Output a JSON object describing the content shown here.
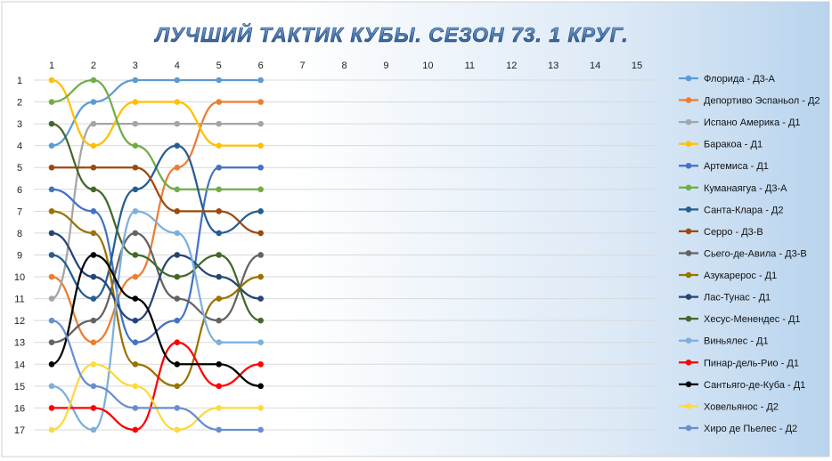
{
  "chart_data": {
    "type": "line",
    "title": "ЛУЧШИЙ ТАКТИК КУБЫ. СЕЗОН 73. 1 КРУГ.",
    "x_ticks": [
      "1",
      "2",
      "3",
      "4",
      "5",
      "6",
      "7",
      "8",
      "9",
      "10",
      "11",
      "12",
      "13",
      "14",
      "15"
    ],
    "y_ticks": [
      "1",
      "2",
      "3",
      "4",
      "5",
      "6",
      "7",
      "8",
      "9",
      "10",
      "11",
      "12",
      "13",
      "14",
      "15",
      "16",
      "17"
    ],
    "xlim": [
      1,
      15
    ],
    "ylim": [
      1,
      17
    ],
    "y_reversed": true,
    "x_axis_position": "top",
    "grid": "horizontal",
    "legend_position": "right",
    "series": [
      {
        "name": "Флорида - Д3-А",
        "color": "#5b9bd5",
        "values": [
          4,
          2,
          1,
          1,
          1,
          1
        ]
      },
      {
        "name": "Депортиво Эспаньол - Д2",
        "color": "#ed7d31",
        "values": [
          10,
          13,
          10,
          5,
          2,
          2
        ]
      },
      {
        "name": "Испано Америка - Д1",
        "color": "#a5a5a5",
        "values": [
          11,
          3,
          3,
          3,
          3,
          3
        ]
      },
      {
        "name": "Баракоа - Д1",
        "color": "#ffc000",
        "values": [
          1,
          4,
          2,
          2,
          4,
          4
        ]
      },
      {
        "name": "Артемиса - Д1",
        "color": "#4472c4",
        "values": [
          6,
          7,
          13,
          12,
          5,
          5
        ]
      },
      {
        "name": "Куманаягуа - Д3-А",
        "color": "#70ad47",
        "values": [
          2,
          1,
          4,
          6,
          6,
          6
        ]
      },
      {
        "name": "Санта-Клара - Д2",
        "color": "#255e91",
        "values": [
          9,
          11,
          6,
          4,
          8,
          7
        ]
      },
      {
        "name": "Серро - Д3-В",
        "color": "#9e480e",
        "values": [
          5,
          5,
          5,
          7,
          7,
          8
        ]
      },
      {
        "name": "Сьего-де-Авила - Д3-В",
        "color": "#636363",
        "values": [
          13,
          12,
          8,
          11,
          12,
          9
        ]
      },
      {
        "name": "Азукарерос - Д1",
        "color": "#997300",
        "values": [
          7,
          8,
          14,
          15,
          11,
          10
        ]
      },
      {
        "name": "Лас-Тунас - Д1",
        "color": "#264478",
        "values": [
          8,
          10,
          12,
          9,
          10,
          11
        ]
      },
      {
        "name": "Хесус-Менендес - Д1",
        "color": "#43682b",
        "values": [
          3,
          6,
          9,
          10,
          9,
          12
        ]
      },
      {
        "name": "Виньялес - Д1",
        "color": "#7cafdd",
        "values": [
          15,
          17,
          7,
          8,
          13,
          13
        ]
      },
      {
        "name": "Пинар-дель-Рио - Д1",
        "color": "#ff0000",
        "values": [
          16,
          16,
          17,
          13,
          15,
          14
        ]
      },
      {
        "name": "Сантьяго-де-Куба - Д1",
        "color": "#000000",
        "values": [
          14,
          9,
          11,
          14,
          14,
          15
        ]
      },
      {
        "name": "Ховельянос - Д2",
        "color": "#ffd93d",
        "values": [
          17,
          14,
          15,
          17,
          16,
          16
        ]
      },
      {
        "name": "Хиро де Пьелес - Д2",
        "color": "#698ed0",
        "values": [
          12,
          15,
          16,
          16,
          17,
          17
        ]
      }
    ]
  }
}
